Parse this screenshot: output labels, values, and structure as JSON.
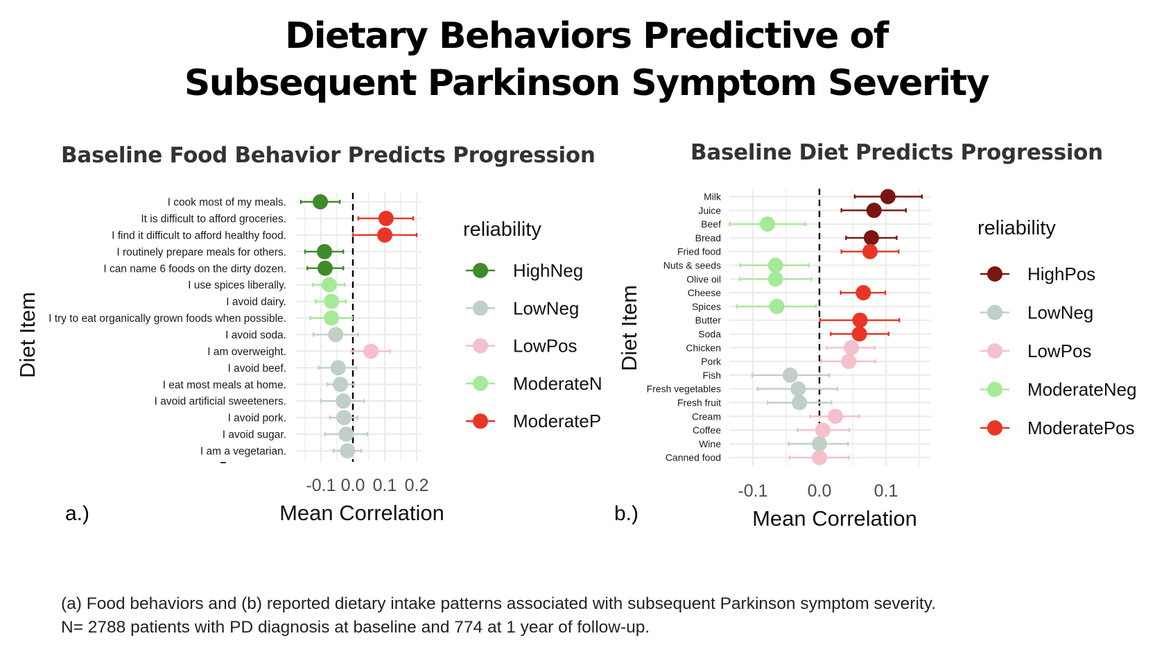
{
  "title": {
    "line1": "Dietary Behaviors Predictive of",
    "line2": "Subsequent Parkinson Symptom Severity"
  },
  "panel_labels": {
    "a": "a.)",
    "b": "b.)"
  },
  "caption": {
    "line1": "(a) Food behaviors and (b) reported dietary intake patterns associated with subsequent Parkinson symptom severity.",
    "line2": "N= 2788 patients with PD diagnosis at baseline and 774 at 1 year of follow-up."
  },
  "colors": {
    "HighNeg": "#3f8a2a",
    "HighPos": "#7a1510",
    "LowNeg": "#c0d0c8",
    "LowPos": "#f4c0cb",
    "ModerateNeg": "#a5ea98",
    "ModeratePos": "#e83526",
    "zero_line": "#000000",
    "grid": "#ebebeb"
  },
  "chart_data": [
    {
      "type": "scatter",
      "subtype": "forest-plot",
      "title": "Baseline Food Behavior Predicts Progression",
      "xlabel": "Mean Correlation",
      "ylabel": "Diet Item",
      "xlim": [
        -0.178,
        0.215
      ],
      "xticks": [
        -0.1,
        0.0,
        0.1,
        0.2
      ],
      "xtick_labels": [
        "-0.1",
        "0.0",
        "0.1",
        "0.2"
      ],
      "grid": true,
      "reference_line": 0.0,
      "legend": {
        "title": "reliability",
        "placement": "right",
        "entries": [
          "HighNeg",
          "LowNeg",
          "LowPos",
          "ModerateN",
          "ModerateP"
        ],
        "entry_keys": [
          "HighNeg",
          "LowNeg",
          "LowPos",
          "ModerateNeg",
          "ModeratePos"
        ]
      },
      "items": [
        {
          "label": "I cook most of my meals.",
          "mean": -0.102,
          "low": -0.163,
          "high": -0.041,
          "reliability": "HighNeg"
        },
        {
          "label": "It is difficult to afford groceries.",
          "mean": 0.104,
          "low": 0.017,
          "high": 0.189,
          "reliability": "ModeratePos"
        },
        {
          "label": "I find it difficult to afford healthy food.",
          "mean": 0.1,
          "low": 0.0,
          "high": 0.2,
          "reliability": "ModeratePos"
        },
        {
          "label": "I routinely prepare meals for others.",
          "mean": -0.089,
          "low": -0.15,
          "high": -0.03,
          "reliability": "HighNeg"
        },
        {
          "label": "I can name 6 foods on the dirty dozen.",
          "mean": -0.087,
          "low": -0.143,
          "high": -0.03,
          "reliability": "HighNeg"
        },
        {
          "label": "I use spices liberally.",
          "mean": -0.074,
          "low": -0.126,
          "high": -0.026,
          "reliability": "ModerateNeg"
        },
        {
          "label": "I avoid dairy.",
          "mean": -0.067,
          "low": -0.117,
          "high": -0.022,
          "reliability": "ModerateNeg"
        },
        {
          "label": "I try to eat organically grown foods when possible.",
          "mean": -0.067,
          "low": -0.133,
          "high": -0.002,
          "reliability": "ModerateNeg"
        },
        {
          "label": "I avoid soda.",
          "mean": -0.054,
          "low": -0.124,
          "high": 0.017,
          "reliability": "LowNeg"
        },
        {
          "label": "I am overweight.",
          "mean": 0.057,
          "low": -0.004,
          "high": 0.117,
          "reliability": "LowPos"
        },
        {
          "label": "I avoid beef.",
          "mean": -0.046,
          "low": -0.107,
          "high": 0.011,
          "reliability": "LowNeg"
        },
        {
          "label": "I eat most meals at home.",
          "mean": -0.039,
          "low": -0.08,
          "high": 0.004,
          "reliability": "LowNeg"
        },
        {
          "label": "I avoid artificial sweeteners.",
          "mean": -0.03,
          "low": -0.1,
          "high": 0.035,
          "reliability": "LowNeg"
        },
        {
          "label": "I avoid pork.",
          "mean": -0.028,
          "low": -0.072,
          "high": 0.015,
          "reliability": "LowNeg"
        },
        {
          "label": "I avoid sugar.",
          "mean": -0.021,
          "low": -0.087,
          "high": 0.046,
          "reliability": "LowNeg"
        },
        {
          "label": "I am a vegetarian.",
          "mean": -0.017,
          "low": -0.061,
          "high": 0.026,
          "reliability": "LowNeg"
        }
      ]
    },
    {
      "type": "scatter",
      "subtype": "forest-plot",
      "title": "Baseline Diet Predicts Progression",
      "xlabel": "Mean Correlation",
      "ylabel": "Diet Item",
      "xlim": [
        -0.135,
        0.168
      ],
      "xticks": [
        -0.1,
        0.0,
        0.1
      ],
      "xtick_labels": [
        "-0.1",
        "0.0",
        "0.1"
      ],
      "grid": true,
      "reference_line": 0.0,
      "legend": {
        "title": "reliability",
        "placement": "right",
        "entries": [
          "HighPos",
          "LowNeg",
          "LowPos",
          "ModerateNeg",
          "ModeratePos"
        ],
        "entry_keys": [
          "HighPos",
          "LowNeg",
          "LowPos",
          "ModerateNeg",
          "ModeratePos"
        ]
      },
      "items": [
        {
          "label": "Milk",
          "mean": 0.103,
          "low": 0.053,
          "high": 0.154,
          "reliability": "HighPos"
        },
        {
          "label": "Juice",
          "mean": 0.082,
          "low": 0.033,
          "high": 0.13,
          "reliability": "HighPos"
        },
        {
          "label": "Beef",
          "mean": -0.078,
          "low": -0.135,
          "high": -0.021,
          "reliability": "ModerateNeg"
        },
        {
          "label": "Bread",
          "mean": 0.078,
          "low": 0.04,
          "high": 0.116,
          "reliability": "HighPos"
        },
        {
          "label": "Fried food",
          "mean": 0.076,
          "low": 0.033,
          "high": 0.119,
          "reliability": "ModeratePos"
        },
        {
          "label": "Nuts & seeds",
          "mean": -0.066,
          "low": -0.119,
          "high": -0.016,
          "reliability": "ModerateNeg"
        },
        {
          "label": "Olive oil",
          "mean": -0.066,
          "low": -0.12,
          "high": -0.012,
          "reliability": "ModerateNeg"
        },
        {
          "label": "Cheese",
          "mean": 0.066,
          "low": 0.032,
          "high": 0.099,
          "reliability": "ModeratePos"
        },
        {
          "label": "Spices",
          "mean": -0.064,
          "low": -0.124,
          "high": -0.005,
          "reliability": "ModerateNeg"
        },
        {
          "label": "Butter",
          "mean": 0.061,
          "low": 0.001,
          "high": 0.12,
          "reliability": "ModeratePos"
        },
        {
          "label": "Soda",
          "mean": 0.06,
          "low": 0.017,
          "high": 0.104,
          "reliability": "ModeratePos"
        },
        {
          "label": "Chicken",
          "mean": 0.048,
          "low": 0.011,
          "high": 0.083,
          "reliability": "LowPos"
        },
        {
          "label": "Pork",
          "mean": 0.044,
          "low": 0.003,
          "high": 0.084,
          "reliability": "LowPos"
        },
        {
          "label": "Fish",
          "mean": -0.044,
          "low": -0.101,
          "high": 0.015,
          "reliability": "LowNeg"
        },
        {
          "label": "Fresh vegetables",
          "mean": -0.032,
          "low": -0.093,
          "high": 0.027,
          "reliability": "LowNeg"
        },
        {
          "label": "Fresh fruit",
          "mean": -0.03,
          "low": -0.078,
          "high": 0.018,
          "reliability": "LowNeg"
        },
        {
          "label": "Cream",
          "mean": 0.024,
          "low": -0.014,
          "high": 0.06,
          "reliability": "LowPos"
        },
        {
          "label": "Coffee",
          "mean": 0.005,
          "low": -0.033,
          "high": 0.045,
          "reliability": "LowPos"
        },
        {
          "label": "Wine",
          "mean": 0.0,
          "low": -0.046,
          "high": 0.043,
          "reliability": "LowNeg"
        },
        {
          "label": "Canned food",
          "mean": 0.0,
          "low": -0.045,
          "high": 0.044,
          "reliability": "LowPos"
        }
      ]
    }
  ]
}
